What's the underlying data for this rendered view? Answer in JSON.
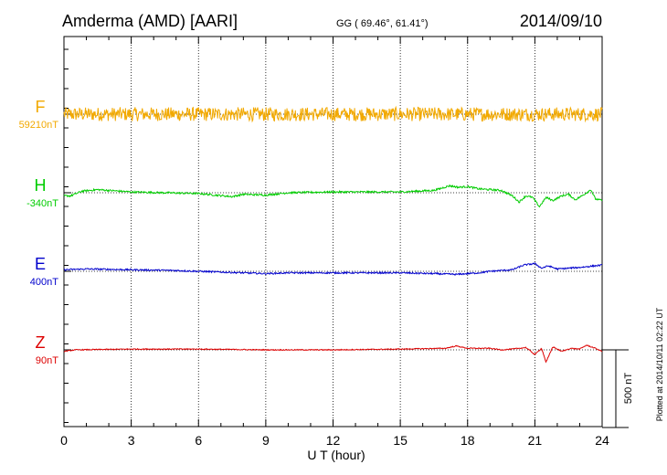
{
  "header": {
    "station": "Amderma (AMD)  [AARI]",
    "coords": "GG ( 69.46°,  61.41°)",
    "date": "2014/09/10"
  },
  "side_note": "Plotted at 2014/10/11 02:22 UT",
  "scale_bar": {
    "label": "500 nT",
    "value_nT": 500
  },
  "chart_data": {
    "type": "line",
    "xlabel": "U T (hour)",
    "xlim": [
      0,
      24
    ],
    "xticks": [
      0,
      3,
      6,
      9,
      12,
      15,
      18,
      21,
      24
    ],
    "grid": "dotted vertical at 3-hour ticks; dotted horizontal baseline per trace",
    "series": [
      {
        "name": "F",
        "baseline_label": "59210nT",
        "baseline_nT": 59210,
        "color": "#f2a900",
        "noise_amp_nT": 45,
        "x": [
          0,
          2,
          4,
          6,
          8,
          10,
          12,
          14,
          16,
          18,
          20,
          22,
          24
        ],
        "y": [
          0,
          0,
          0,
          0,
          0,
          0,
          0,
          0,
          0,
          0,
          0,
          0,
          0
        ]
      },
      {
        "name": "H",
        "baseline_label": "-340nT",
        "baseline_nT": -340,
        "color": "#00cc00",
        "noise_amp_nT": 6,
        "x": [
          0,
          0.3,
          0.8,
          1.5,
          3,
          6,
          7.5,
          8,
          9,
          10,
          12,
          15,
          16.5,
          17.2,
          17.6,
          18,
          18.5,
          19,
          19.5,
          20,
          20.3,
          20.6,
          20.9,
          21.2,
          21.5,
          21.8,
          22.2,
          22.5,
          22.8,
          23.1,
          23.5,
          23.7,
          24
        ],
        "y": [
          -20,
          -20,
          10,
          20,
          5,
          -5,
          -25,
          -10,
          -15,
          0,
          5,
          5,
          15,
          45,
          35,
          40,
          25,
          20,
          15,
          -20,
          -60,
          -20,
          -30,
          -90,
          -30,
          -50,
          -20,
          -10,
          -45,
          -20,
          20,
          -40,
          -50
        ]
      },
      {
        "name": "E",
        "baseline_label": "400nT",
        "baseline_nT": 400,
        "color": "#0000cc",
        "noise_amp_nT": 5,
        "x": [
          0,
          1,
          3,
          5,
          6,
          7,
          9,
          10,
          12,
          15,
          16.5,
          17.5,
          18.5,
          19,
          20,
          20.5,
          21,
          21.3,
          21.6,
          22,
          22.5,
          23,
          24
        ],
        "y": [
          10,
          15,
          10,
          5,
          0,
          -5,
          -15,
          -10,
          -10,
          -10,
          -15,
          -20,
          -10,
          0,
          10,
          40,
          50,
          20,
          35,
          15,
          20,
          25,
          40
        ]
      },
      {
        "name": "Z",
        "baseline_label": "90nT",
        "baseline_nT": 90,
        "color": "#dd0000",
        "noise_amp_nT": 3,
        "x": [
          0,
          0.5,
          3,
          6,
          9,
          12,
          15,
          17,
          17.5,
          18,
          19,
          19.5,
          20,
          20.3,
          20.6,
          21,
          21.3,
          21.5,
          21.8,
          22.2,
          22.6,
          23,
          23.3,
          23.7,
          24
        ],
        "y": [
          -10,
          0,
          5,
          5,
          0,
          0,
          5,
          10,
          25,
          10,
          10,
          0,
          5,
          10,
          15,
          -30,
          10,
          -80,
          20,
          -10,
          10,
          5,
          30,
          10,
          -10
        ]
      }
    ]
  }
}
